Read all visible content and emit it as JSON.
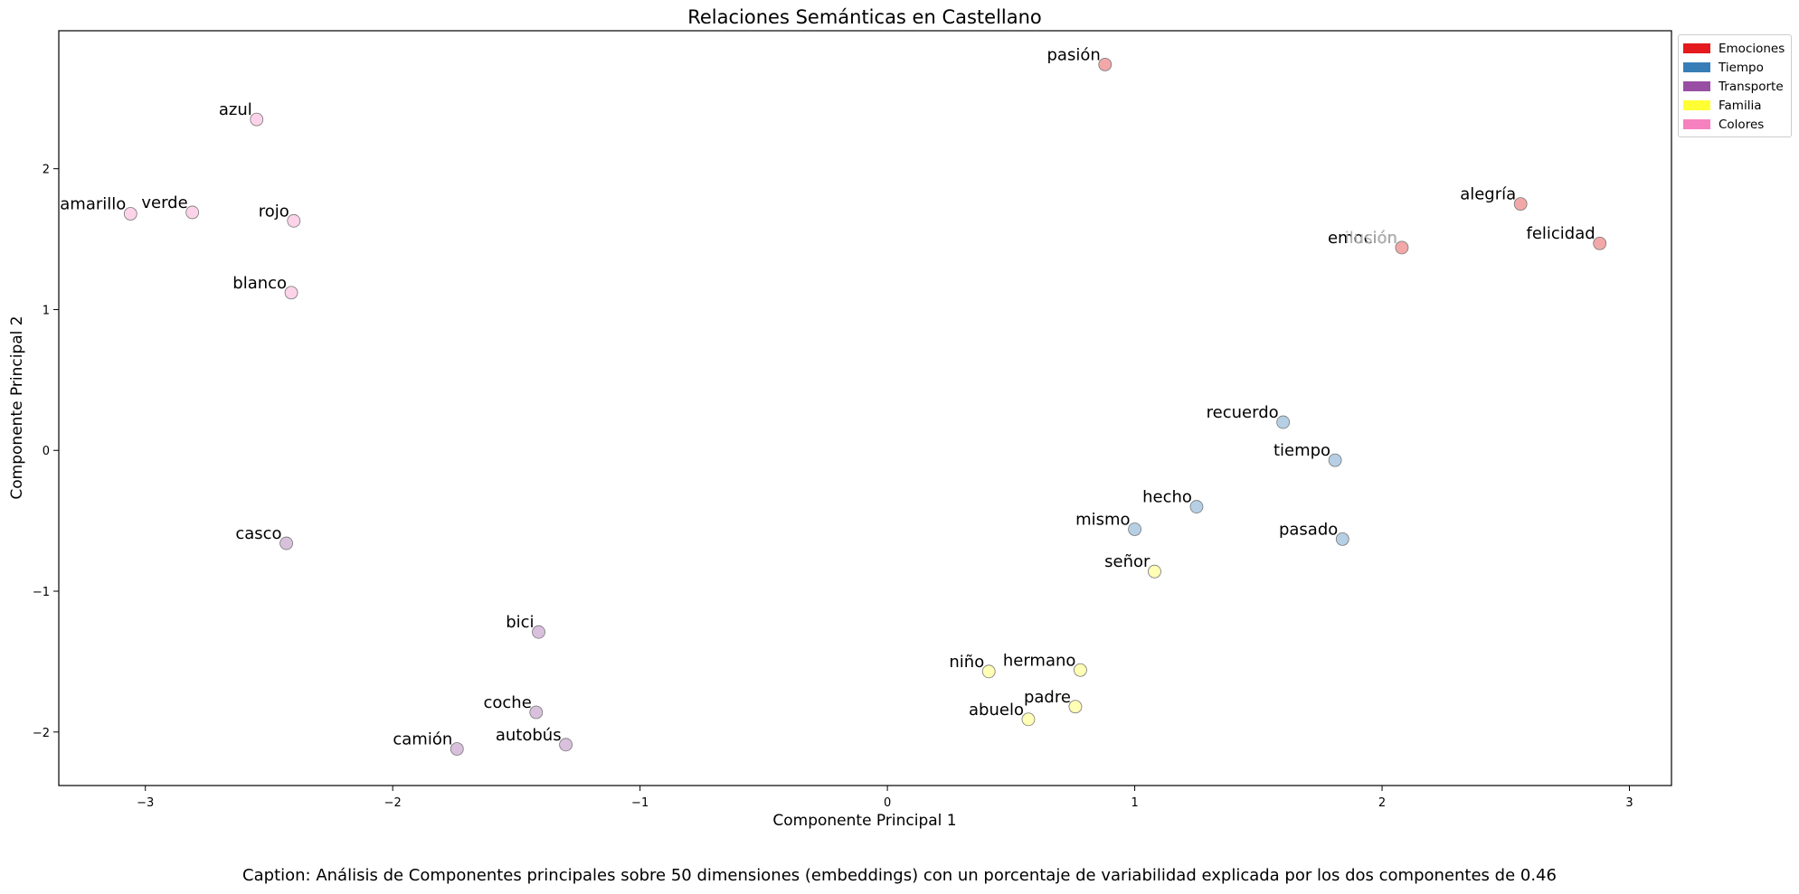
{
  "chart_data": {
    "type": "scatter",
    "title": "Relaciones Semánticas en Castellano",
    "xlabel": "Componente Principal 1",
    "ylabel": "Componente Principal 2",
    "xlim": [
      -3.35,
      3.17
    ],
    "ylim": [
      -2.38,
      2.98
    ],
    "xticks": [
      -3,
      -2,
      -1,
      0,
      1,
      2,
      3
    ],
    "xtick_labels": [
      "−3",
      "−2",
      "−1",
      "0",
      "1",
      "2",
      "3"
    ],
    "yticks": [
      -2,
      -1,
      0,
      1,
      2
    ],
    "ytick_labels": [
      "−2",
      "−1",
      "0",
      "1",
      "2"
    ],
    "grid": false,
    "legend_position": "outside top-right",
    "categories": [
      {
        "name": "Emociones",
        "color": "#e41a1c",
        "point_color": "#f2a8a8"
      },
      {
        "name": "Tiempo",
        "color": "#377eb8",
        "point_color": "#b6cfe4"
      },
      {
        "name": "Transporte",
        "color": "#984ea3",
        "point_color": "#d9c0dd"
      },
      {
        "name": "Familia",
        "color": "#ffff33",
        "point_color": "#ffffb6"
      },
      {
        "name": "Colores",
        "color": "#f781bf",
        "point_color": "#fcd3e8"
      }
    ],
    "points": [
      {
        "label": "pasión",
        "category": "Emociones",
        "x": 0.88,
        "y": 2.74
      },
      {
        "label": "alegría",
        "category": "Emociones",
        "x": 2.56,
        "y": 1.75
      },
      {
        "label": "emoción",
        "category": "Emociones",
        "x": 2.08,
        "y": 1.44
      },
      {
        "label": "ilusión",
        "category": "Emociones",
        "x": 2.08,
        "y": 1.44,
        "faded": true
      },
      {
        "label": "felicidad",
        "category": "Emociones",
        "x": 2.88,
        "y": 1.47
      },
      {
        "label": "recuerdo",
        "category": "Tiempo",
        "x": 1.6,
        "y": 0.2
      },
      {
        "label": "tiempo",
        "category": "Tiempo",
        "x": 1.81,
        "y": -0.07
      },
      {
        "label": "hecho",
        "category": "Tiempo",
        "x": 1.25,
        "y": -0.4
      },
      {
        "label": "mismo",
        "category": "Tiempo",
        "x": 1.0,
        "y": -0.56
      },
      {
        "label": "pasado",
        "category": "Tiempo",
        "x": 1.84,
        "y": -0.63
      },
      {
        "label": "casco",
        "category": "Transporte",
        "x": -2.43,
        "y": -0.66
      },
      {
        "label": "bici",
        "category": "Transporte",
        "x": -1.41,
        "y": -1.29
      },
      {
        "label": "coche",
        "category": "Transporte",
        "x": -1.42,
        "y": -1.86
      },
      {
        "label": "camión",
        "category": "Transporte",
        "x": -1.74,
        "y": -2.12
      },
      {
        "label": "autobús",
        "category": "Transporte",
        "x": -1.3,
        "y": -2.09
      },
      {
        "label": "señor",
        "category": "Familia",
        "x": 1.08,
        "y": -0.86
      },
      {
        "label": "niño",
        "category": "Familia",
        "x": 0.41,
        "y": -1.57
      },
      {
        "label": "hermano",
        "category": "Familia",
        "x": 0.78,
        "y": -1.56
      },
      {
        "label": "padre",
        "category": "Familia",
        "x": 0.76,
        "y": -1.82
      },
      {
        "label": "abuelo",
        "category": "Familia",
        "x": 0.57,
        "y": -1.91
      },
      {
        "label": "azul",
        "category": "Colores",
        "x": -2.55,
        "y": 2.35
      },
      {
        "label": "amarillo",
        "category": "Colores",
        "x": -3.06,
        "y": 1.68
      },
      {
        "label": "verde",
        "category": "Colores",
        "x": -2.81,
        "y": 1.69
      },
      {
        "label": "rojo",
        "category": "Colores",
        "x": -2.4,
        "y": 1.63
      },
      {
        "label": "blanco",
        "category": "Colores",
        "x": -2.41,
        "y": 1.12
      }
    ]
  },
  "caption": "Caption: Análisis de Componentes principales sobre 50 dimensiones (embeddings) con un porcentaje de variabilidad explicada por los dos componentes de 0.46"
}
